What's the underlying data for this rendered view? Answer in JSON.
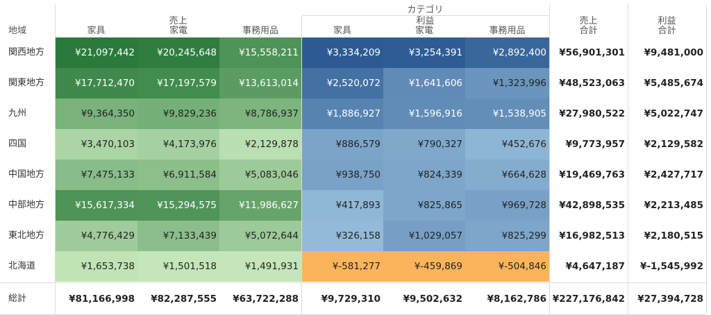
{
  "chart_data": {
    "type": "table",
    "title": "",
    "column_group_label": "カテゴリ",
    "row_header_label": "地域",
    "measures": [
      {
        "name": "売上",
        "categories": [
          "家具",
          "家電",
          "事務用品"
        ]
      },
      {
        "name": "利益",
        "categories": [
          "家具",
          "家電",
          "事務用品"
        ]
      }
    ],
    "total_headers": [
      {
        "line1": "売上",
        "line2": "合計"
      },
      {
        "line1": "利益",
        "line2": "合計"
      }
    ],
    "rows": [
      {
        "region": "関西地方",
        "sales": [
          "¥21,097,442",
          "¥20,245,648",
          "¥15,558,211"
        ],
        "profit": [
          "¥3,334,209",
          "¥3,254,391",
          "¥2,892,400"
        ],
        "sales_total": "¥56,901,301",
        "profit_total": "¥9,481,000"
      },
      {
        "region": "関東地方",
        "sales": [
          "¥17,712,470",
          "¥17,197,579",
          "¥13,613,014"
        ],
        "profit": [
          "¥2,520,072",
          "¥1,641,606",
          "¥1,323,996"
        ],
        "sales_total": "¥48,523,063",
        "profit_total": "¥5,485,674"
      },
      {
        "region": "九州",
        "sales": [
          "¥9,364,350",
          "¥9,829,236",
          "¥8,786,937"
        ],
        "profit": [
          "¥1,886,927",
          "¥1,596,916",
          "¥1,538,905"
        ],
        "sales_total": "¥27,980,522",
        "profit_total": "¥5,022,747"
      },
      {
        "region": "四国",
        "sales": [
          "¥3,470,103",
          "¥4,173,976",
          "¥2,129,878"
        ],
        "profit": [
          "¥886,579",
          "¥790,327",
          "¥452,676"
        ],
        "sales_total": "¥9,773,957",
        "profit_total": "¥2,129,582"
      },
      {
        "region": "中国地方",
        "sales": [
          "¥7,475,133",
          "¥6,911,584",
          "¥5,083,046"
        ],
        "profit": [
          "¥938,750",
          "¥824,339",
          "¥664,628"
        ],
        "sales_total": "¥19,469,763",
        "profit_total": "¥2,427,717"
      },
      {
        "region": "中部地方",
        "sales": [
          "¥15,617,334",
          "¥15,294,575",
          "¥11,986,627"
        ],
        "profit": [
          "¥417,893",
          "¥825,865",
          "¥969,728"
        ],
        "sales_total": "¥42,898,535",
        "profit_total": "¥2,213,485"
      },
      {
        "region": "東北地方",
        "sales": [
          "¥4,776,429",
          "¥7,133,439",
          "¥5,072,644"
        ],
        "profit": [
          "¥326,158",
          "¥1,029,057",
          "¥825,299"
        ],
        "sales_total": "¥16,982,513",
        "profit_total": "¥2,180,515"
      },
      {
        "region": "北海道",
        "sales": [
          "¥1,653,738",
          "¥1,501,518",
          "¥1,491,931"
        ],
        "profit": [
          "¥-581,277",
          "¥-459,869",
          "¥-504,846"
        ],
        "sales_total": "¥4,647,187",
        "profit_total": "¥-1,545,992"
      }
    ],
    "grand_total": {
      "label": "総計",
      "sales": [
        "¥81,166,998",
        "¥82,287,555",
        "¥63,722,288"
      ],
      "profit": [
        "¥9,729,310",
        "¥9,502,632",
        "¥8,162,786"
      ],
      "sales_total": "¥227,176,842",
      "profit_total": "¥27,394,728"
    },
    "color_encoding": {
      "sales": {
        "palette": "green",
        "low": "#c4e6b8",
        "high": "#2a7a3b"
      },
      "profit": {
        "palette": "blue-orange diverging",
        "negative": "#fbb45c",
        "positive_low": "#a9cfe8",
        "positive_high": "#2c5b93"
      }
    }
  }
}
